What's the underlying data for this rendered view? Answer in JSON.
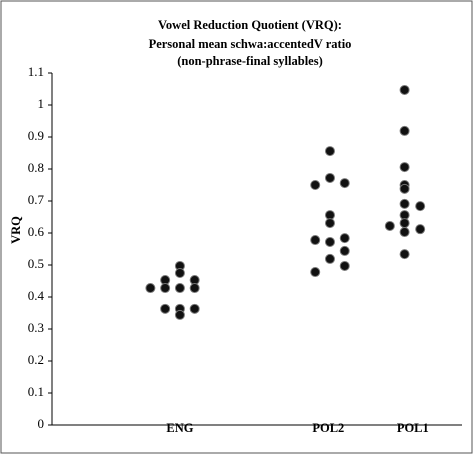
{
  "chart_data": {
    "type": "scatter",
    "title": [
      "Vowel Reduction Quotient (VRQ):",
      "Personal mean schwa:accentedV ratio",
      "(non-phrase-final syllables)"
    ],
    "y_label": "VRQ",
    "xlim": [
      0,
      5
    ],
    "xticks": [
      {
        "value": 1.56,
        "label": "ENG"
      },
      {
        "value": 3.37,
        "label": "POL2"
      },
      {
        "value": 4.4,
        "label": "POL1"
      }
    ],
    "ylim": [
      0,
      1.1
    ],
    "yticks": [
      0,
      0.1,
      0.2,
      0.3,
      0.4,
      0.5,
      0.6,
      0.7,
      0.8,
      0.9,
      1,
      1.1
    ],
    "color": "#111111",
    "x": [
      1.2,
      1.38,
      1.38,
      1.56,
      1.56,
      1.56,
      1.38,
      1.56,
      1.56,
      1.74,
      1.74,
      1.74,
      3.21,
      3.39,
      3.39,
      3.57,
      3.39,
      3.39,
      3.21,
      3.57,
      3.39,
      3.57,
      3.39,
      3.57,
      3.21,
      4.3,
      4.3,
      4.3,
      4.3,
      4.3,
      4.3,
      4.49,
      4.3,
      4.3,
      4.12,
      4.3,
      4.49,
      4.3
    ],
    "y": [
      0.428,
      0.453,
      0.428,
      0.497,
      0.475,
      0.428,
      0.363,
      0.363,
      0.344,
      0.363,
      0.453,
      0.428,
      0.75,
      0.856,
      0.772,
      0.756,
      0.656,
      0.631,
      0.578,
      0.584,
      0.572,
      0.544,
      0.519,
      0.497,
      0.478,
      1.047,
      0.919,
      0.806,
      0.75,
      0.738,
      0.691,
      0.684,
      0.656,
      0.631,
      0.622,
      0.603,
      0.612,
      0.534
    ]
  }
}
